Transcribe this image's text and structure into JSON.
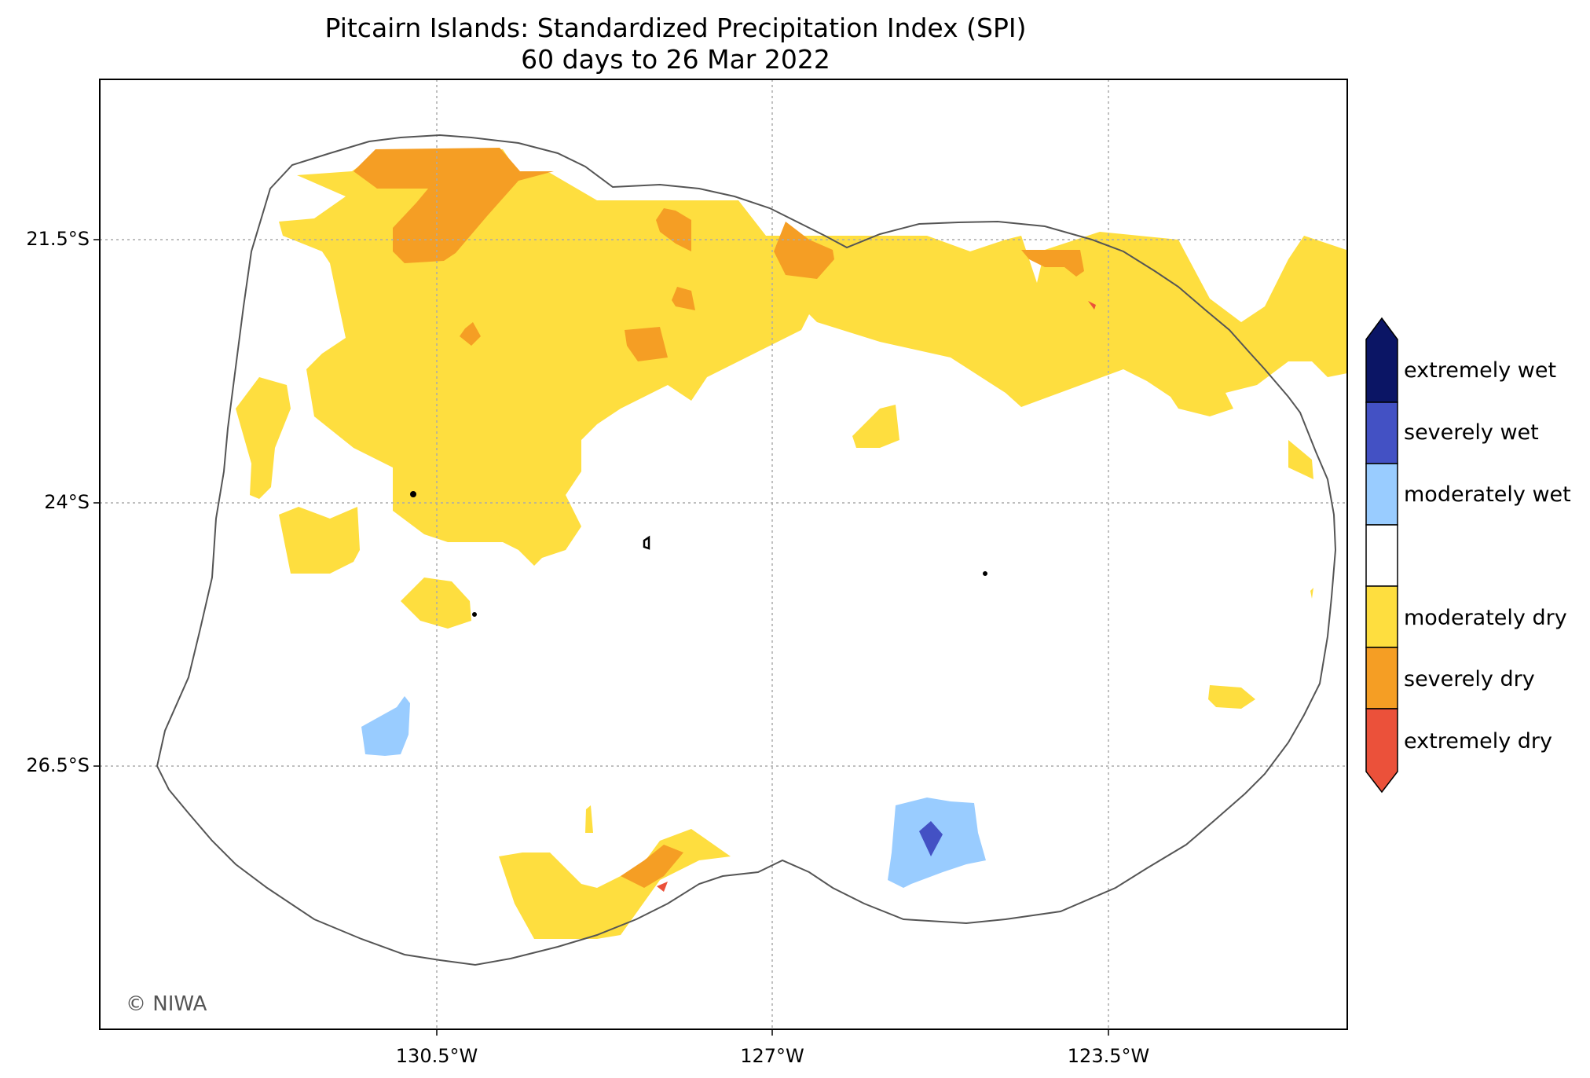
{
  "title": "Pitcairn Islands: Standardized Precipitation Index (SPI)",
  "subtitle": "60 days to 26 Mar 2022",
  "axes": {
    "y_ticks": [
      "21.5°S",
      "24°S",
      "26.5°S"
    ],
    "x_ticks": [
      "130.5°W",
      "127°W",
      "123.5°W"
    ],
    "gridlines": "dotted"
  },
  "legend": {
    "placement": "right",
    "categories": [
      {
        "label": "extremely wet",
        "color": "#0b1565"
      },
      {
        "label": "severely wet",
        "color": "#4351c4"
      },
      {
        "label": "moderately wet",
        "color": "#99ccff"
      },
      {
        "label": "",
        "color": "#ffffff"
      },
      {
        "label": "moderately dry",
        "color": "#fede3f"
      },
      {
        "label": "severely dry",
        "color": "#f59e24"
      },
      {
        "label": "extremely dry",
        "color": "#eb513a"
      }
    ]
  },
  "colors": {
    "moderately_dry": "#fede3f",
    "severely_dry": "#f59e24",
    "extremely_dry": "#eb513a",
    "moderately_wet": "#99ccff",
    "severely_wet": "#4351c4",
    "eez_outline": "#555555",
    "grid": "#aaaaaa"
  },
  "copyright": "© NIWA"
}
